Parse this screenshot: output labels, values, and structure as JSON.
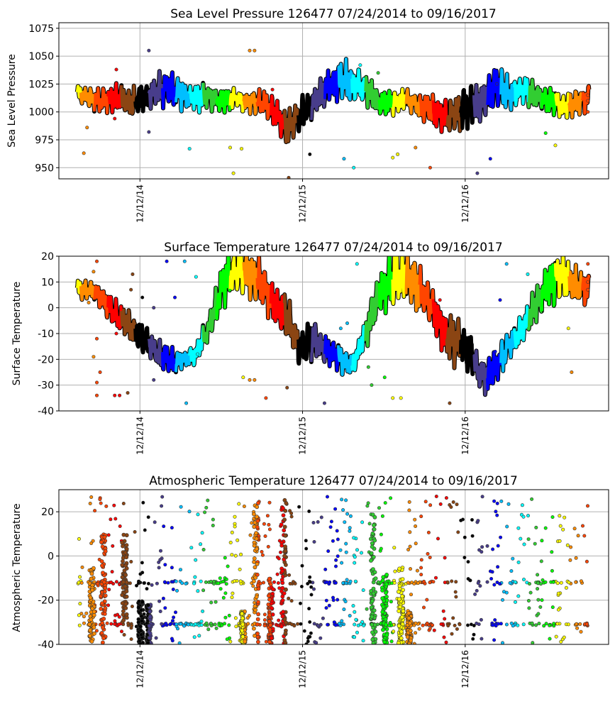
{
  "chart_data": [
    {
      "type": "scatter",
      "id": "slp",
      "title": "Sea Level Pressure 126477  07/24/2014 to 09/16/2017",
      "xlabel": "",
      "ylabel": "Sea Level Pressure",
      "ylim": [
        940,
        1080
      ],
      "yticks": [
        950,
        975,
        1000,
        1025,
        1050,
        1075
      ],
      "xlim": [
        "2014-06-13",
        "2017-10-30"
      ],
      "xticks": [
        "12/12/14",
        "12/12/15",
        "12/12/16"
      ],
      "xtick_dates": [
        "2014-12-12",
        "2015-12-12",
        "2016-12-12"
      ],
      "grid": true,
      "start": "2014-07-24",
      "end": "2017-09-16",
      "baseline": 1012,
      "monthly_mean": [
        1017,
        1012,
        1010,
        1013,
        1008,
        1012,
        1018,
        1020,
        1016,
        1012,
        1015,
        1010,
        1012,
        1008,
        1010,
        1000,
        985,
        995,
        1008,
        1020,
        1030,
        1025,
        1022,
        1008,
        1008,
        1012,
        1005,
        1002,
        995,
        1000,
        1005,
        1010,
        1025,
        1015,
        1020,
        1015,
        1010,
        1005,
        1008,
        1012
      ],
      "monthly_spread": [
        8,
        10,
        12,
        14,
        16,
        14,
        16,
        18,
        16,
        14,
        14,
        12,
        10,
        10,
        12,
        14,
        18,
        18,
        14,
        16,
        20,
        18,
        16,
        12,
        12,
        10,
        12,
        14,
        18,
        20,
        20,
        16,
        18,
        16,
        14,
        12,
        12,
        12,
        12,
        12
      ],
      "outliers": [
        [
          2014.6,
          963
        ],
        [
          2014.62,
          986
        ],
        [
          2014.8,
          1038
        ],
        [
          2014.79,
          994
        ],
        [
          2015.0,
          982
        ],
        [
          2015.0,
          1055
        ],
        [
          2015.25,
          967
        ],
        [
          2015.5,
          968
        ],
        [
          2015.52,
          945
        ],
        [
          2015.57,
          967
        ],
        [
          2015.62,
          1055
        ],
        [
          2015.65,
          1055
        ],
        [
          2015.76,
          1020
        ],
        [
          2015.86,
          941
        ],
        [
          2015.99,
          962
        ],
        [
          2016.2,
          958
        ],
        [
          2016.26,
          950
        ],
        [
          2016.3,
          1042
        ],
        [
          2016.41,
          1035
        ],
        [
          2016.5,
          959
        ],
        [
          2016.53,
          962
        ],
        [
          2016.64,
          968
        ],
        [
          2016.73,
          950
        ],
        [
          2017.02,
          945
        ],
        [
          2017.1,
          958
        ],
        [
          2017.14,
          1025
        ],
        [
          2017.44,
          981
        ],
        [
          2017.5,
          970
        ],
        [
          2017.7,
          1010
        ],
        [
          2017.7,
          1015
        ],
        [
          2017.7,
          1000
        ]
      ]
    },
    {
      "type": "scatter",
      "id": "st",
      "title": "Surface Temperature 126477  07/24/2014 to 09/16/2017",
      "xlabel": "",
      "ylabel": "Surface Temperature",
      "ylim": [
        -40,
        20
      ],
      "yticks": [
        -40,
        -30,
        -20,
        -10,
        0,
        10,
        20
      ],
      "xlim": [
        "2014-06-13",
        "2017-10-30"
      ],
      "xticks": [
        "12/12/14",
        "12/12/15",
        "12/12/16"
      ],
      "xtick_dates": [
        "2014-12-12",
        "2015-12-12",
        "2016-12-12"
      ],
      "grid": true,
      "start": "2014-07-24",
      "end": "2017-09-16",
      "monthly_mean": [
        7,
        7,
        3,
        -3,
        -7,
        -12,
        -17,
        -20,
        -21,
        -18,
        -8,
        8,
        14,
        14,
        10,
        2,
        -5,
        -15,
        -13,
        -16,
        -20,
        -22,
        -10,
        5,
        12,
        12,
        8,
        0,
        -10,
        -14,
        -18,
        -28,
        -22,
        -14,
        -8,
        2,
        10,
        12,
        8,
        7
      ],
      "monthly_spread": [
        4,
        4,
        6,
        6,
        6,
        6,
        6,
        6,
        4,
        4,
        6,
        10,
        10,
        10,
        10,
        8,
        10,
        8,
        8,
        6,
        6,
        4,
        6,
        10,
        12,
        12,
        10,
        8,
        10,
        10,
        8,
        8,
        8,
        6,
        6,
        8,
        10,
        10,
        8,
        6
      ],
      "outliers": [
        [
          2014.66,
          14
        ],
        [
          2014.68,
          18
        ],
        [
          2014.63,
          2
        ],
        [
          2014.68,
          -12
        ],
        [
          2014.66,
          -19
        ],
        [
          2014.7,
          -25
        ],
        [
          2014.68,
          -29
        ],
        [
          2014.68,
          -34
        ],
        [
          2014.8,
          -10
        ],
        [
          2014.79,
          -34
        ],
        [
          2014.82,
          -34
        ],
        [
          2014.87,
          -33
        ],
        [
          2014.9,
          13
        ],
        [
          2014.89,
          7
        ],
        [
          2014.96,
          4
        ],
        [
          2015.03,
          0
        ],
        [
          2015.03,
          -28
        ],
        [
          2015.11,
          18
        ],
        [
          2015.16,
          4
        ],
        [
          2015.22,
          18
        ],
        [
          2015.23,
          -37
        ],
        [
          2015.29,
          12
        ],
        [
          2015.3,
          -18
        ],
        [
          2015.58,
          -27
        ],
        [
          2015.62,
          -28
        ],
        [
          2015.65,
          -28
        ],
        [
          2015.72,
          -35
        ],
        [
          2015.85,
          -31
        ],
        [
          2016.08,
          -37
        ],
        [
          2016.18,
          -8
        ],
        [
          2016.22,
          -6
        ],
        [
          2016.28,
          17
        ],
        [
          2016.35,
          -23
        ],
        [
          2016.37,
          -30
        ],
        [
          2016.45,
          -27
        ],
        [
          2016.5,
          -35
        ],
        [
          2016.55,
          -35
        ],
        [
          2016.79,
          3
        ],
        [
          2016.85,
          -37
        ],
        [
          2017.13,
          -17
        ],
        [
          2017.16,
          3
        ],
        [
          2017.2,
          17
        ],
        [
          2017.33,
          13
        ],
        [
          2017.58,
          -8
        ],
        [
          2017.6,
          -25
        ],
        [
          2017.7,
          17
        ],
        [
          2017.7,
          10
        ],
        [
          2017.7,
          7
        ]
      ]
    },
    {
      "type": "scatter",
      "id": "at",
      "title": "Atmospheric Temperature 126477  07/24/2014 to 09/16/2017",
      "xlabel": "",
      "ylabel": "Atmospheric Temperature",
      "ylim": [
        -40,
        30
      ],
      "yticks": [
        -40,
        -20,
        0,
        20
      ],
      "xlim": [
        "2014-06-13",
        "2017-10-30"
      ],
      "xticks": [
        "12/12/14",
        "12/12/15",
        "12/12/16"
      ],
      "xtick_dates": [
        "2014-12-12",
        "2015-12-12",
        "2016-12-12"
      ],
      "grid": true,
      "start": "2014-07-24",
      "end": "2017-09-16",
      "band_levels": [
        -31,
        -12
      ],
      "scatter_range": [
        -40,
        27
      ],
      "dense_columns": [
        [
          2014.65,
          -40,
          -5
        ],
        [
          2014.72,
          -40,
          10
        ],
        [
          2014.85,
          -30,
          10
        ],
        [
          2014.95,
          -40,
          -20
        ],
        [
          2015.0,
          -40,
          -22
        ],
        [
          2015.58,
          -40,
          -25
        ],
        [
          2015.66,
          -40,
          26
        ],
        [
          2015.75,
          -40,
          -10
        ],
        [
          2015.83,
          -40,
          26
        ],
        [
          2016.38,
          -40,
          20
        ],
        [
          2016.45,
          -40,
          -8
        ],
        [
          2016.55,
          -40,
          -5
        ],
        [
          2016.6,
          -40,
          -25
        ]
      ]
    }
  ],
  "month_colors": [
    "#ffff00",
    "#ff8c00",
    "#ff4500",
    "#ff0000",
    "#8b4513",
    "#000000",
    "#483d8b",
    "#0000ff",
    "#00bfff",
    "#00ffff",
    "#32cd32",
    "#00ff00"
  ]
}
